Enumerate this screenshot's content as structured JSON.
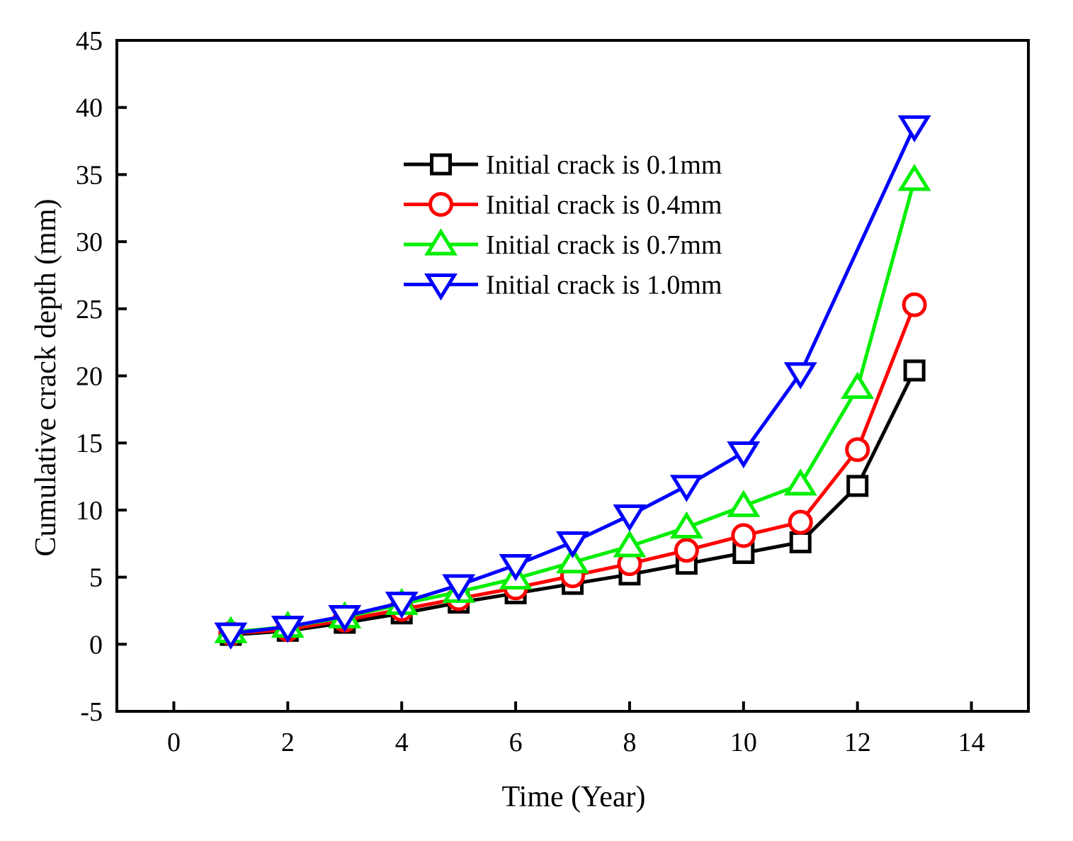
{
  "chart_data": {
    "type": "line",
    "title": "",
    "xlabel": "Time (Year)",
    "ylabel": "Cumulative crack depth (mm)",
    "xlim": [
      -1,
      15
    ],
    "ylim": [
      -5,
      45
    ],
    "xticks": [
      0,
      2,
      4,
      6,
      8,
      10,
      12,
      14
    ],
    "yticks": [
      -5,
      0,
      5,
      10,
      15,
      20,
      25,
      30,
      35,
      40,
      45
    ],
    "x": [
      1,
      2,
      3,
      4,
      5,
      6,
      7,
      8,
      9,
      10,
      11,
      12,
      13
    ],
    "legend_position": "upper-center",
    "series": [
      {
        "name": "Initial crack is 0.1mm",
        "color": "#000000",
        "marker": "square",
        "values": [
          0.7,
          1.0,
          1.6,
          2.3,
          3.1,
          3.8,
          4.5,
          5.2,
          6.0,
          6.8,
          7.6,
          11.8,
          20.4
        ]
      },
      {
        "name": "Initial crack is 0.4mm",
        "color": "#ff0000",
        "marker": "circle",
        "values": [
          0.8,
          1.1,
          1.8,
          2.6,
          3.4,
          4.2,
          5.1,
          6.0,
          7.0,
          8.1,
          9.1,
          14.5,
          25.3
        ]
      },
      {
        "name": "Initial crack is 0.7mm",
        "color": "#00ee00",
        "marker": "triangle-up",
        "values": [
          0.9,
          1.3,
          2.0,
          3.0,
          3.9,
          4.9,
          6.1,
          7.3,
          8.7,
          10.3,
          11.9,
          19.1,
          34.6
        ]
      },
      {
        "name": "Initial crack is 1.0mm",
        "color": "#0000ff",
        "marker": "triangle-down",
        "values": [
          0.8,
          1.3,
          2.1,
          3.1,
          4.4,
          5.9,
          7.6,
          9.6,
          11.8,
          14.3,
          20.2,
          null,
          38.6
        ]
      }
    ]
  }
}
